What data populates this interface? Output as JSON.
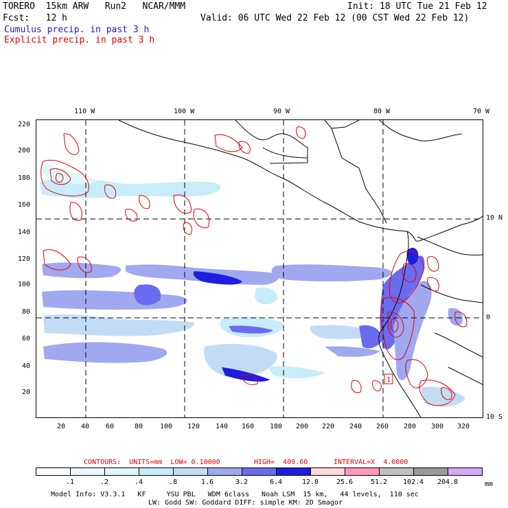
{
  "header": {
    "model": "TORERO  15km ARW   Run2   NCAR/MMM",
    "init": "Init: 18 UTC Tue 21 Feb 12",
    "fcst": "Fcst:   12 h",
    "valid": "Valid: 06 UTC Wed 22 Feb 12 (00 CST Wed 22 Feb 12)",
    "legend_cumulus": "Cumulus precip. in past 3 h",
    "legend_explicit": "Explicit precip. in past 3 h"
  },
  "map": {
    "top_lon_labels": [
      "110 W",
      "100 W",
      "90 W",
      "80 W",
      "70 W"
    ],
    "right_lat_labels": [
      "10 N",
      "0",
      "10 S"
    ],
    "left_y_ticks": [
      "220",
      "200",
      "180",
      "160",
      "140",
      "120",
      "100",
      "80",
      "60",
      "40",
      "20"
    ],
    "bottom_x_ticks": [
      "20",
      "40",
      "60",
      "80",
      "100",
      "120",
      "140",
      "160",
      "180",
      "200",
      "220",
      "240",
      "260",
      "280",
      "300",
      "320"
    ],
    "box_label": "1"
  },
  "contours": {
    "label": "CONTOURS:  UNITS=mm  LOW= 0.10000",
    "high": "HIGH=  409.60",
    "interval": "INTERVAL=X  4.0000"
  },
  "colorbar": {
    "labels": [
      ".1",
      ".2",
      ".4",
      ".8",
      "1.6",
      "3.2",
      "6.4",
      "12.8",
      "25.6",
      "51.2",
      "102.4",
      "204.8"
    ],
    "unit": "mm",
    "colors": [
      "#ffffff",
      "#eef7ff",
      "#e0f6fa",
      "#c8ecfa",
      "#c2dcf6",
      "#a0a8f0",
      "#6b6bf0",
      "#1e1ee0",
      "#ffd8d8",
      "#ff99bb",
      "#c0c0c0",
      "#9a9a9a",
      "#d8a8f8"
    ]
  },
  "footer": {
    "line1": "Model Info: V3.3.1   KF     YSU PBL   WDM 6class   Noah LSM  15 km,   44 levels,  110 sec",
    "line2": "LW: Godd SW: Goddard DIFF: simple KM: 2D Smagor"
  }
}
